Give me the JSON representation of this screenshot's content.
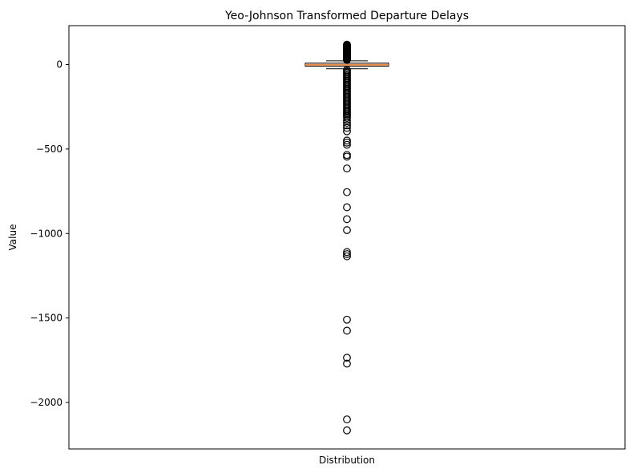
{
  "chart_data": {
    "type": "box",
    "title": "Yeo-Johnson Transformed Departure Delays",
    "xlabel": "Distribution",
    "ylabel": "Value",
    "ylim": [
      -2275,
      230
    ],
    "yticks": [
      0,
      -500,
      -1000,
      -1500,
      -2000
    ],
    "ytick_labels": [
      "0",
      "−500",
      "−1000",
      "−1500",
      "−2000"
    ],
    "grid": false,
    "box": {
      "q1": -10,
      "median": -2,
      "q3": 8,
      "whisker_low": -25,
      "whisker_high": 22,
      "fill_color": "#fdd0bf",
      "median_color": "#e8843a"
    },
    "outliers": [
      118,
      115,
      112,
      110,
      108,
      105,
      102,
      100,
      98,
      95,
      92,
      90,
      88,
      85,
      82,
      80,
      78,
      75,
      72,
      70,
      68,
      65,
      62,
      60,
      58,
      55,
      52,
      50,
      48,
      45,
      42,
      40,
      38,
      35,
      32,
      30,
      27,
      -32,
      -40,
      -48,
      -56,
      -64,
      -72,
      -80,
      -88,
      -96,
      -104,
      -112,
      -120,
      -128,
      -136,
      -144,
      -152,
      -160,
      -168,
      -176,
      -184,
      -192,
      -200,
      -208,
      -216,
      -224,
      -232,
      -240,
      -248,
      -256,
      -264,
      -272,
      -280,
      -288,
      -296,
      -305,
      -315,
      -330,
      -345,
      -360,
      -375,
      -395,
      -450,
      -462,
      -475,
      -535,
      -545,
      -615,
      -755,
      -845,
      -915,
      -980,
      -1110,
      -1122,
      -1135,
      -1510,
      -1575,
      -1735,
      -1770,
      -2100,
      -2165
    ]
  }
}
